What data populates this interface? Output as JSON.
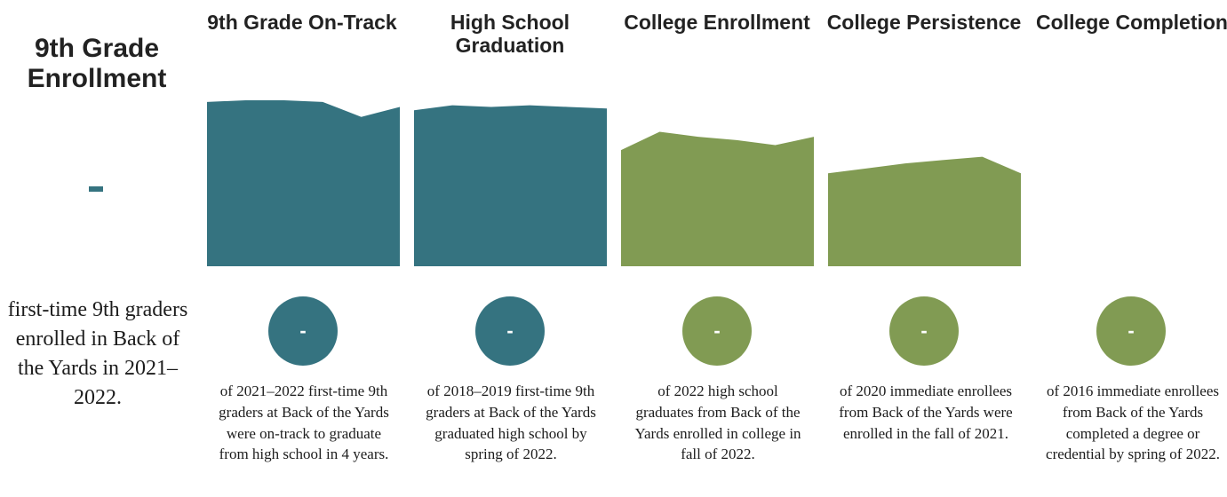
{
  "enrollment": {
    "title": "9th Grade Enrollment",
    "value": "-",
    "description": "first-time 9th graders enrolled in Back of the Yards in 2021–2022."
  },
  "stages": [
    {
      "title": "9th Grade On-Track",
      "value": "-",
      "description": "of 2021–2022 first-time 9th graders at Back of the Yards were on-track to graduate from high school in 4 years.",
      "color": "#357380"
    },
    {
      "title": "High School Graduation",
      "value": "-",
      "description": "of 2018–2019 first-time 9th graders at Back of the Yards graduated high school by spring of 2022.",
      "color": "#357380"
    },
    {
      "title": "College Enrollment",
      "value": "-",
      "description": "of 2022 high school graduates from Back of the Yards enrolled in college in fall of 2022.",
      "color": "#819b53"
    },
    {
      "title": "College Persistence",
      "value": "-",
      "description": "of 2020 immediate enrollees from Back of the Yards were enrolled in the fall of 2021.",
      "color": "#819b53"
    },
    {
      "title": "College Completion",
      "value": "-",
      "description": "of 2016 immediate enrollees from Back of the Yards completed a degree or credential by spring of 2022.",
      "color": "#819b53"
    }
  ],
  "chart_data": {
    "type": "area",
    "ylim": [
      0,
      100
    ],
    "series": [
      {
        "values": [
          99,
          100,
          100,
          99,
          90,
          96
        ]
      },
      {
        "values": [
          94,
          97,
          96,
          97,
          96,
          95
        ]
      },
      {
        "values": [
          70,
          81,
          78,
          76,
          73,
          78
        ]
      },
      {
        "values": [
          56,
          59,
          62,
          64,
          66,
          56
        ]
      },
      {
        "values": []
      }
    ]
  }
}
